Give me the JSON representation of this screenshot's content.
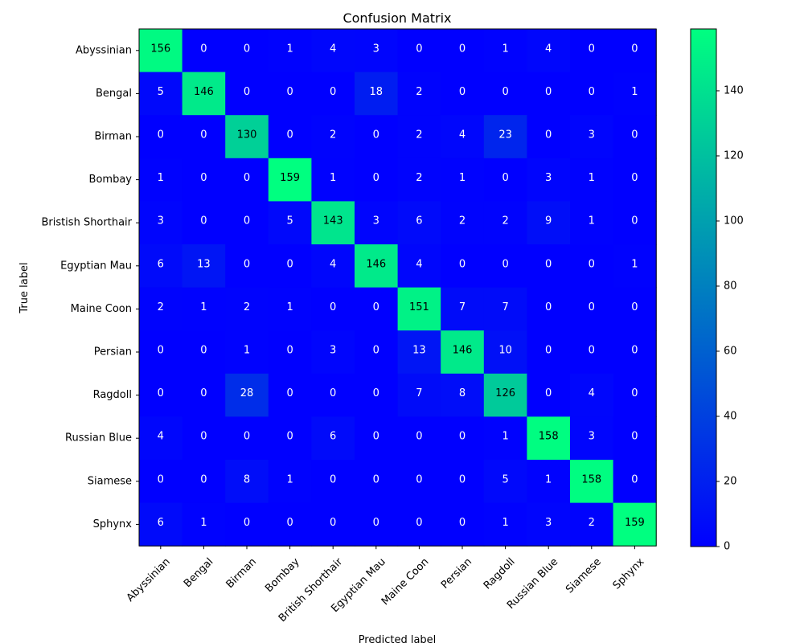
{
  "chart_data": {
    "type": "heatmap",
    "title": "Confusion Matrix",
    "xlabel": "Predicted label",
    "ylabel": "True label",
    "row_labels": [
      "Abyssinian",
      "Bengal",
      "Birman",
      "Bombay",
      "Bristish Shorthair",
      "Egyptian Mau",
      "Maine Coon",
      "Persian",
      "Ragdoll",
      "Russian Blue",
      "Siamese",
      "Sphynx"
    ],
    "col_labels": [
      "Abyssinian",
      "Bengal",
      "Birman",
      "Bombay",
      "British Shorthair",
      "Egyptian Mau",
      "Maine Coon",
      "Persian",
      "Ragdoll",
      "Russian Blue",
      "Siamese",
      "Sphynx"
    ],
    "matrix": [
      [
        156,
        0,
        0,
        1,
        4,
        3,
        0,
        0,
        1,
        4,
        0,
        0
      ],
      [
        5,
        146,
        0,
        0,
        0,
        18,
        2,
        0,
        0,
        0,
        0,
        1
      ],
      [
        0,
        0,
        130,
        0,
        2,
        0,
        2,
        4,
        23,
        0,
        3,
        0
      ],
      [
        1,
        0,
        0,
        159,
        1,
        0,
        2,
        1,
        0,
        3,
        1,
        0
      ],
      [
        3,
        0,
        0,
        5,
        143,
        3,
        6,
        2,
        2,
        9,
        1,
        0
      ],
      [
        6,
        13,
        0,
        0,
        4,
        146,
        4,
        0,
        0,
        0,
        0,
        1
      ],
      [
        2,
        1,
        2,
        1,
        0,
        0,
        151,
        7,
        7,
        0,
        0,
        0
      ],
      [
        0,
        0,
        1,
        0,
        3,
        0,
        13,
        146,
        10,
        0,
        0,
        0
      ],
      [
        0,
        0,
        28,
        0,
        0,
        0,
        7,
        8,
        126,
        0,
        4,
        0
      ],
      [
        4,
        0,
        0,
        0,
        6,
        0,
        0,
        0,
        1,
        158,
        3,
        0
      ],
      [
        0,
        0,
        8,
        1,
        0,
        0,
        0,
        0,
        5,
        1,
        158,
        0
      ],
      [
        6,
        1,
        0,
        0,
        0,
        0,
        0,
        0,
        1,
        3,
        2,
        159
      ]
    ],
    "colormap": "winter",
    "color_low": "#0000ff",
    "color_high": "#00ff80",
    "value_range": [
      0,
      159
    ],
    "colorbar_ticks": [
      0,
      20,
      40,
      60,
      80,
      100,
      120,
      140
    ]
  }
}
